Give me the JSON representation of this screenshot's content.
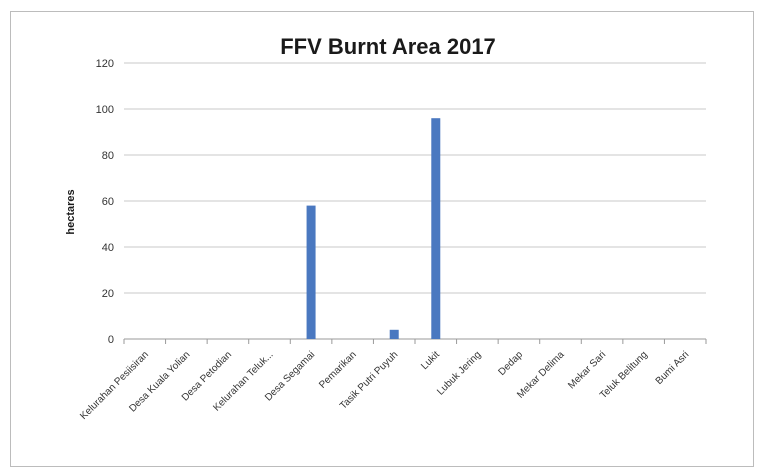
{
  "chart_data": {
    "type": "bar",
    "title": "FFV Burnt Area 2017",
    "xlabel": "",
    "ylabel": "hectares",
    "ylim": [
      0,
      120
    ],
    "yticks": [
      0,
      20,
      40,
      60,
      80,
      100,
      120
    ],
    "grid": true,
    "legend": "none",
    "bar_color": "#4a78c0",
    "categories": [
      "Kelurahan Pesiisiran",
      "Desa Kuala Yolian",
      "Desa Petodian",
      "Kelurahan Teluk...",
      "Desa Segamai",
      "Pemarikan",
      "Tasik Putri Puyuh",
      "Lukit",
      "Lubuk Jering",
      "Dedap",
      "Mekar Delima",
      "Mekar Sari",
      "Teluk Belitung",
      "Bumi Asri"
    ],
    "values": [
      0,
      0,
      0,
      0,
      58,
      0,
      4,
      96,
      0,
      0,
      0,
      0,
      0,
      0
    ]
  }
}
